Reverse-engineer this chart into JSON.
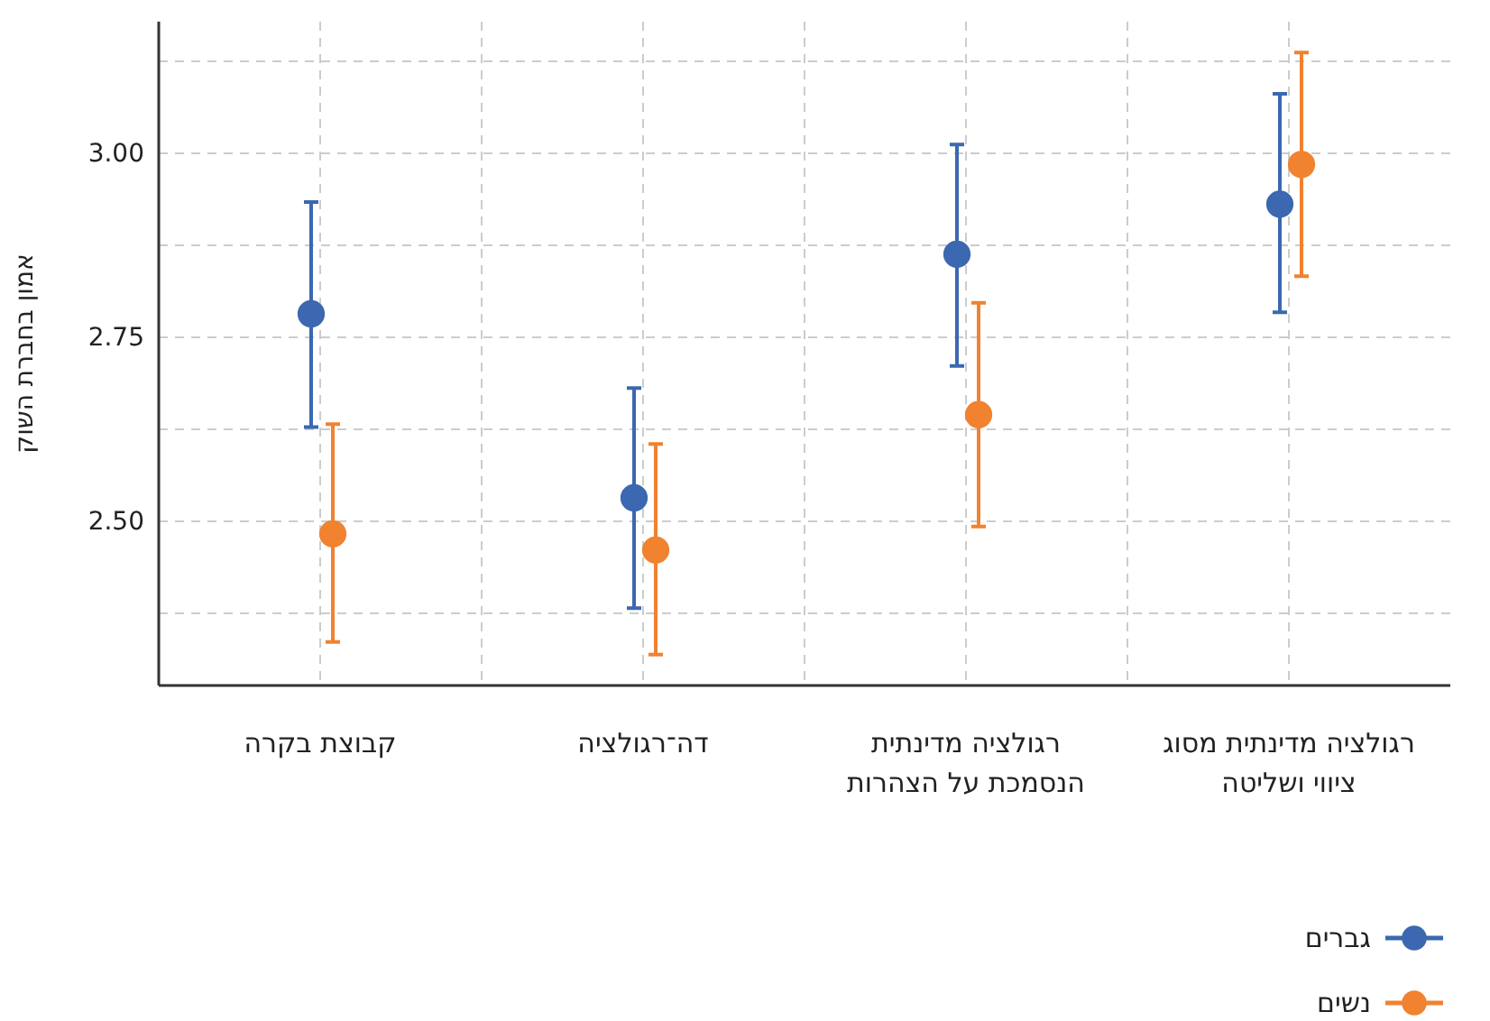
{
  "chart_data": {
    "type": "scatter",
    "ylabel": "אמון בחברת השוק",
    "categories": [
      "קבוצת בקרה",
      "דה־רגולציה",
      "רגולציה מדינתית הנסמכת על הצהרות",
      "רגולציה מדינתית מסוג ציווי ושליטה"
    ],
    "series": [
      {
        "name": "גברים",
        "color": "#3b68b0",
        "values": [
          2.782,
          2.532,
          2.863,
          2.931
        ],
        "errors": [
          [
            2.628,
            2.934
          ],
          [
            2.382,
            2.681
          ],
          [
            2.711,
            3.012
          ],
          [
            2.784,
            3.081
          ]
        ]
      },
      {
        "name": "נשים",
        "color": "#f08230",
        "values": [
          2.483,
          2.461,
          2.645,
          2.985
        ],
        "errors": [
          [
            2.336,
            2.632
          ],
          [
            2.319,
            2.605
          ],
          [
            2.493,
            2.797
          ],
          [
            2.833,
            3.137
          ]
        ]
      }
    ],
    "ylim": [
      2.277,
      3.179
    ],
    "yticks": [
      {
        "value": 2.375,
        "label": null
      },
      {
        "value": 2.5,
        "label": "2.50"
      },
      {
        "value": 2.625,
        "label": null
      },
      2.75,
      {
        "value": 2.875,
        "label": null
      },
      {
        "value": 3,
        "label": "3.00"
      },
      {
        "value": 3.125,
        "label": null
      }
    ],
    "grid": true,
    "legend": "bottom right",
    "marker": "circle"
  }
}
